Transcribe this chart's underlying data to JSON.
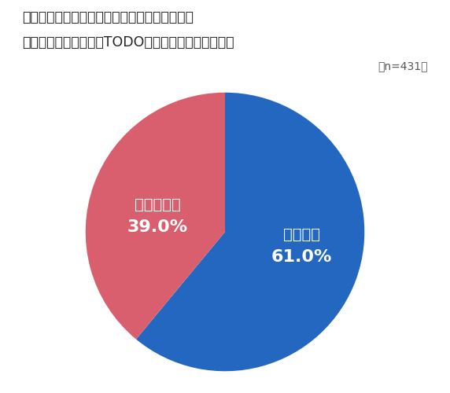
{
  "title_line1": "紙の手帳とデジタルツール（社内カレンダーや",
  "title_line2": "スケジュールアプリ・TODO管理ツールなど）を併用",
  "n_label": "（n=431）",
  "slices": [
    61.0,
    39.0
  ],
  "labels": [
    "している",
    "していない"
  ],
  "percentages": [
    "61.0%",
    "39.0%"
  ],
  "colors": [
    "#2367C0",
    "#D95F6E"
  ],
  "background_color": "#ffffff",
  "text_color_white": "#ffffff",
  "title_color": "#222222",
  "n_label_color": "#555555"
}
